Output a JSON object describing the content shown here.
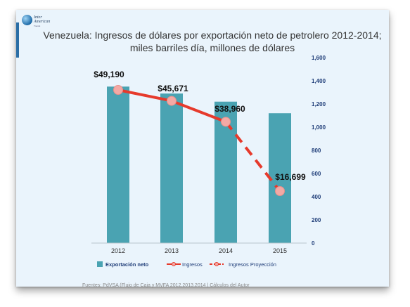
{
  "logo": {
    "line1": "Inter",
    "line2": "American",
    "line3": "Trends"
  },
  "title_line1": "Venezuela: Ingresos de dólares por exportación neto de petrolero 2012-2014;",
  "title_line2": "miles barriles día, millones de dólares",
  "source": "Fuentes: PdVSA (Flujo de Caja y MVFA 2012,2013,2014  | Cálculos del Autor",
  "colors": {
    "bar": "#4aa3b2",
    "line": "#e63a2c",
    "marker": "#f3a9a5",
    "background": "#eaf4fc"
  },
  "chart_data": {
    "type": "bar",
    "title": "Venezuela: Ingresos de dólares por exportación neto de petrolero 2012-2014; miles barriles día, millones de dólares",
    "categories": [
      "2012",
      "2013",
      "2014",
      "2015"
    ],
    "series": [
      {
        "name": "Exportación neto",
        "type": "bar",
        "axis": "right",
        "values": [
          1350,
          1290,
          1220,
          1120
        ]
      },
      {
        "name": "Ingresos",
        "type": "line",
        "axis": "hidden",
        "values": [
          49190,
          45671,
          38960,
          null
        ]
      },
      {
        "name": "Ingresos Proyección",
        "type": "line-dashed",
        "axis": "hidden",
        "values": [
          null,
          null,
          38960,
          16699
        ]
      }
    ],
    "data_labels": [
      "$49,190",
      "$45,671",
      "$38,960",
      "$16,699"
    ],
    "right_axis": {
      "ylim": [
        0,
        1600
      ],
      "ticks": [
        "0",
        "200",
        "400",
        "600",
        "800",
        "1,000",
        "1,200",
        "1,400",
        "1,600"
      ]
    },
    "legend_position": "bottom",
    "grid": false
  }
}
